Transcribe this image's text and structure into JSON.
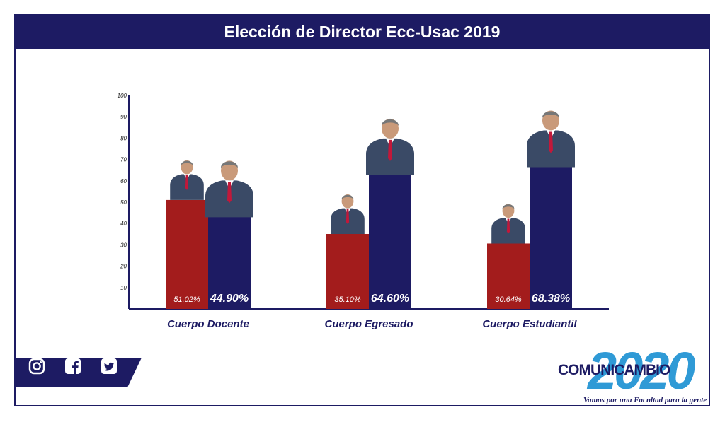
{
  "header": {
    "title": "Elección de Director Ecc-Usac 2019"
  },
  "chart_data": {
    "type": "bar",
    "title": "Elección de Director Ecc-Usac 2019",
    "categories": [
      "Cuerpo Docente",
      "Cuerpo Egresado",
      "Cuerpo Estudiantil"
    ],
    "series": [
      {
        "values": [
          51.02,
          35.1,
          30.64
        ],
        "labels": [
          "51.02%",
          "35.10%",
          "30.64%"
        ],
        "color": "#a31c1c"
      },
      {
        "values": [
          44.9,
          64.6,
          68.38
        ],
        "labels": [
          "44.90%",
          "64.60%",
          "68.38%"
        ],
        "color": "#1d1b63"
      }
    ],
    "ylim": [
      0,
      100
    ],
    "yticks": [
      "10",
      "20",
      "30",
      "40",
      "50",
      "60",
      "70",
      "80",
      "90",
      "100"
    ],
    "grid": false
  },
  "social": {
    "icons": [
      "instagram-icon",
      "facebook-icon",
      "twitter-icon"
    ]
  },
  "brand": {
    "year": "2020",
    "name_part1": "COMUNI",
    "name_part2": "CAMBIO",
    "slogan": "Vamos por una Facultad para la gente"
  },
  "colors": {
    "navy": "#1d1b63",
    "red": "#a31c1c",
    "accent": "#2f9ad6"
  }
}
